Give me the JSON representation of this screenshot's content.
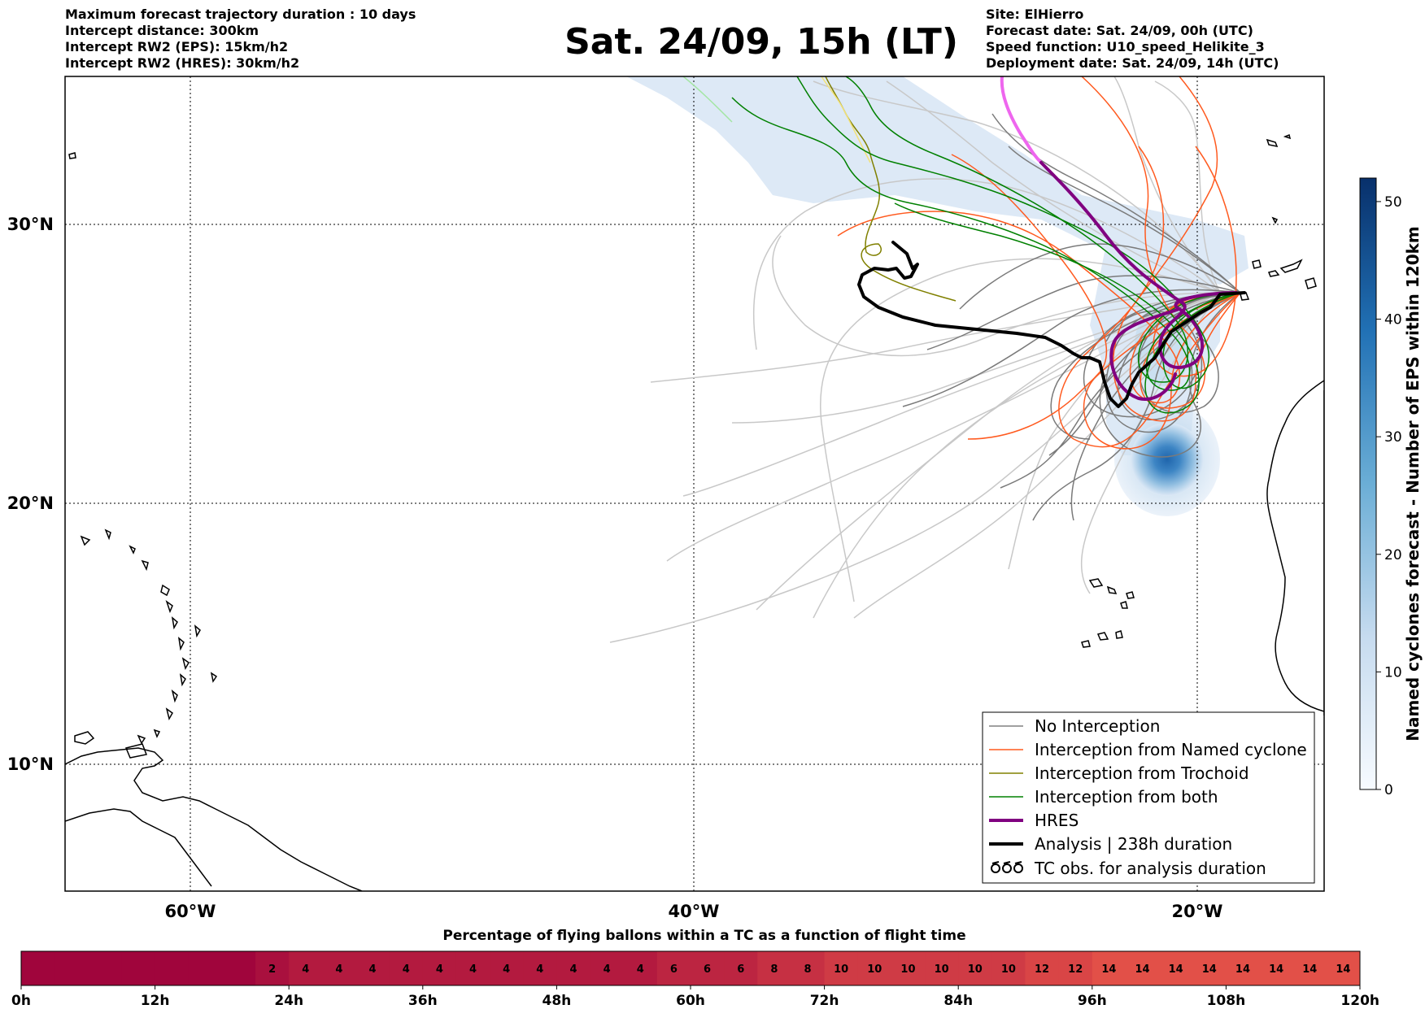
{
  "header": {
    "left_lines": [
      "Maximum forecast trajectory duration : 10 days",
      "Intercept distance: 300km",
      "Intercept RW2 (EPS):  15km/h2",
      "Intercept RW2 (HRES): 30km/h2"
    ],
    "title": "Sat. 24/09, 15h (LT)",
    "right_lines": [
      "Site: ElHierro",
      "Forecast date: Sat. 24/09, 00h (UTC)",
      "Speed function: U10_speed_Helikite_3",
      "Deployment date: Sat. 24/09, 14h (UTC)"
    ]
  },
  "map": {
    "lon_ticks": [
      {
        "lon": -60,
        "label": "60°W"
      },
      {
        "lon": -40,
        "label": "40°W"
      },
      {
        "lon": -20,
        "label": "20°W"
      }
    ],
    "lat_ticks": [
      {
        "lat": 30,
        "label": "30°N"
      },
      {
        "lat": 20,
        "label": "20°N"
      },
      {
        "lat": 10,
        "label": "10°N"
      }
    ],
    "extent": {
      "lon_min": -65,
      "lon_max": -15,
      "lat_min": 4.5,
      "lat_max": 35.3
    },
    "colors": {
      "no_interception": "#808080",
      "named_cyclone": "#ff5a1f",
      "trochoid": "#808000",
      "both": "#008000",
      "hres": "#800080",
      "analysis": "#000000",
      "density_light": "#dde9f6",
      "density_dark": "#1f65ac"
    }
  },
  "legend": {
    "items": [
      {
        "label": "No Interception",
        "kind": "thin",
        "color": "#808080"
      },
      {
        "label": "Interception from Named cyclone",
        "kind": "thin",
        "color": "#ff5a1f"
      },
      {
        "label": "Interception from Trochoid",
        "kind": "thin",
        "color": "#808000"
      },
      {
        "label": "Interception from both",
        "kind": "thin",
        "color": "#008000"
      },
      {
        "label": "HRES",
        "kind": "thick",
        "color": "#800080"
      },
      {
        "label": "Analysis | 238h duration",
        "kind": "thick",
        "color": "#000000"
      },
      {
        "label": "TC obs. for analysis duration",
        "kind": "tc-symbol",
        "color": "#000000"
      }
    ]
  },
  "colorbar": {
    "label": "Named cyclones forecast - Number of EPS within 120km",
    "min": 0,
    "max": 52,
    "ticks": [
      0,
      10,
      20,
      30,
      40,
      50
    ]
  },
  "flight_bar": {
    "title": "Percentage of flying ballons within a TC as a function of flight time",
    "values": [
      0,
      0,
      0,
      0,
      0,
      0,
      0,
      2,
      4,
      4,
      4,
      4,
      4,
      4,
      4,
      4,
      4,
      4,
      4,
      6,
      6,
      6,
      8,
      8,
      10,
      10,
      10,
      10,
      10,
      10,
      12,
      12,
      14,
      14,
      14,
      14,
      14,
      14,
      14,
      14
    ],
    "ticks": [
      "0h",
      "12h",
      "24h",
      "36h",
      "48h",
      "60h",
      "72h",
      "84h",
      "96h",
      "108h",
      "120h"
    ]
  }
}
